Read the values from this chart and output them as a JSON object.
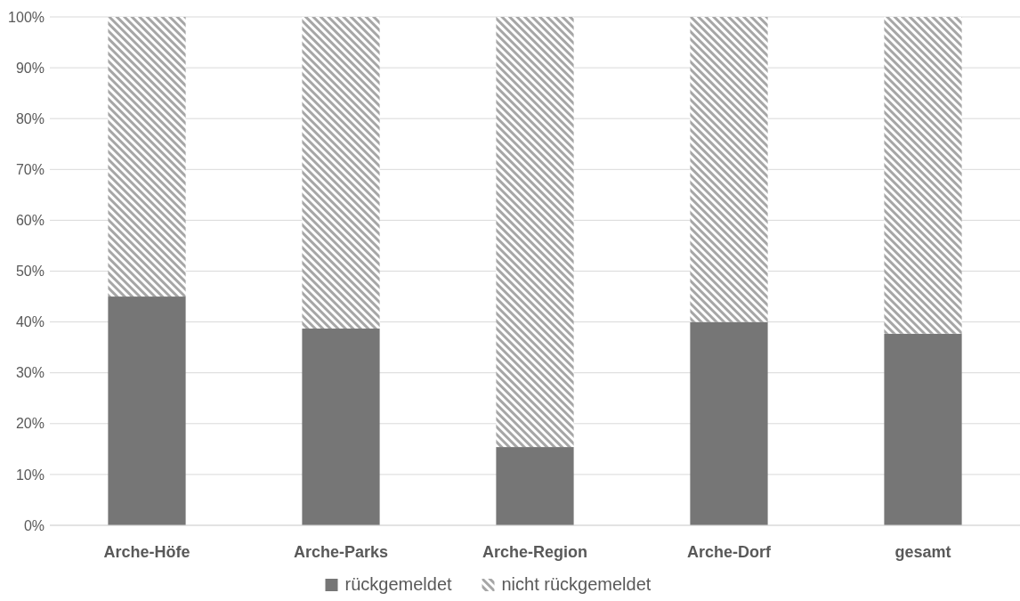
{
  "chart_data": {
    "type": "bar",
    "stacked": true,
    "categories": [
      "Arche-Höfe",
      "Arche-Parks",
      "Arche-Region",
      "Arche-Dorf",
      "gesamt"
    ],
    "series": [
      {
        "name": "rückgemeldet",
        "color": "#767676",
        "values": [
          45,
          38.7,
          15.4,
          40,
          37.7
        ]
      },
      {
        "name": "nicht rückgemeldet",
        "color": "#a6a6a6",
        "values": [
          55,
          61.3,
          84.6,
          60,
          62.3
        ]
      }
    ],
    "ylim": [
      0,
      100
    ],
    "yticks": [
      {
        "value": 0,
        "label": "0%"
      },
      {
        "value": 10,
        "label": "10%"
      },
      {
        "value": 20,
        "label": "20%"
      },
      {
        "value": 30,
        "label": "30%"
      },
      {
        "value": 40,
        "label": "40%"
      },
      {
        "value": 50,
        "label": "50%"
      },
      {
        "value": 60,
        "label": "60%"
      },
      {
        "value": 70,
        "label": "70%"
      },
      {
        "value": 80,
        "label": "80%"
      },
      {
        "value": 90,
        "label": "90%"
      },
      {
        "value": 100,
        "label": "100%"
      }
    ],
    "grid": "y",
    "legend": "bottom"
  }
}
